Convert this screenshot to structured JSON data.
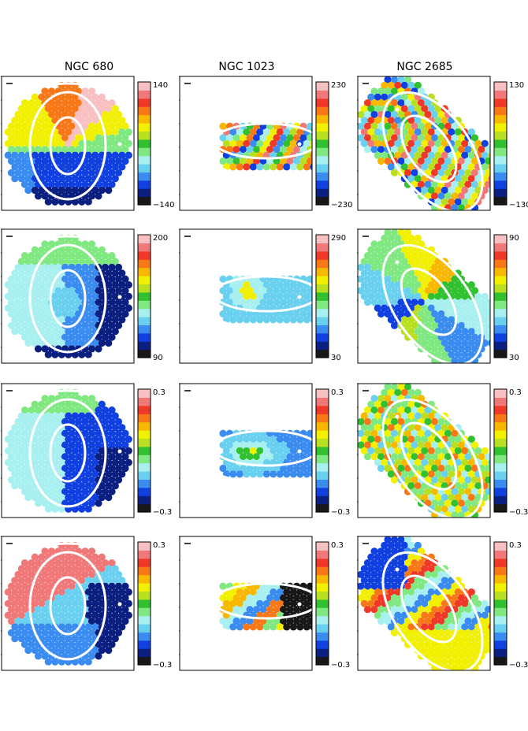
{
  "figure": {
    "columns": [
      "NGC 680",
      "NGC 1023",
      "NGC 2685"
    ],
    "rows": [
      [
        {
          "max": "140",
          "min": "−140"
        },
        {
          "max": "230",
          "min": "−230"
        },
        {
          "max": "130",
          "min": "−130"
        }
      ],
      [
        {
          "max": "200",
          "min": "90"
        },
        {
          "max": "290",
          "min": "30"
        },
        {
          "max": "90",
          "min": "30"
        }
      ],
      [
        {
          "max": "0.3",
          "min": "−0.3"
        },
        {
          "max": "0.3",
          "min": "−0.3"
        },
        {
          "max": "0.3",
          "min": "−0.3"
        }
      ],
      [
        {
          "max": "0.3",
          "min": "−0.3"
        },
        {
          "max": "0.3",
          "min": "−0.3"
        },
        {
          "max": "0.3",
          "min": "−0.3"
        }
      ]
    ],
    "colorbar_colors": [
      "#181818",
      "#0a1f80",
      "#1040e0",
      "#3a8cf0",
      "#6ad0f0",
      "#a8f0f0",
      "#80e880",
      "#30c030",
      "#b8e020",
      "#f0f000",
      "#f8b800",
      "#f87818",
      "#f03828",
      "#f07878",
      "#f8c0c0"
    ]
  },
  "chart_data": {
    "type": "heatmap",
    "layout": "4x3 grid of kinematic maps",
    "columns": [
      "NGC 680",
      "NGC 1023",
      "NGC 2685"
    ],
    "colorbar_ranges": [
      [
        [
          -140,
          140
        ],
        [
          -230,
          230
        ],
        [
          -130,
          130
        ]
      ],
      [
        [
          90,
          200
        ],
        [
          30,
          290
        ],
        [
          30,
          90
        ]
      ],
      [
        [
          -0.3,
          0.3
        ],
        [
          -0.3,
          0.3
        ],
        [
          -0.3,
          0.3
        ]
      ],
      [
        [
          -0.3,
          0.3
        ],
        [
          -0.3,
          0.3
        ],
        [
          -0.3,
          0.3
        ]
      ]
    ],
    "colormap": "sauron (black-blue-cyan-green-yellow-orange-red-pink)",
    "overlays": "white isophote ellipses"
  }
}
